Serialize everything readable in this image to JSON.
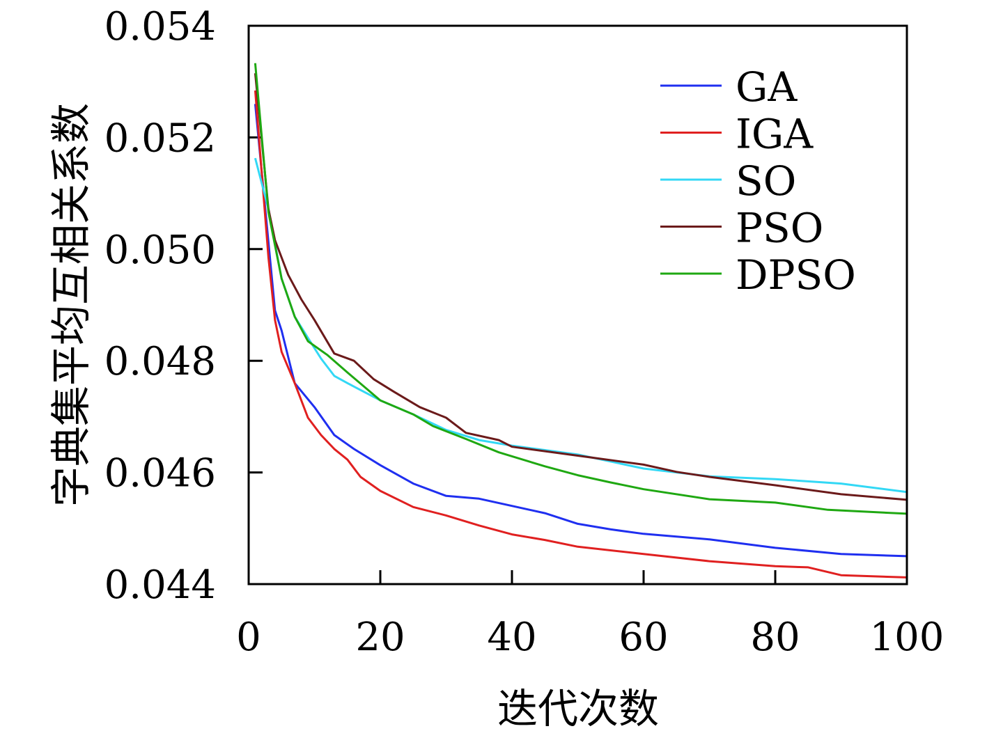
{
  "chart_data": {
    "type": "line",
    "title": "",
    "xlabel": "迭代次数",
    "ylabel": "字典集平均互相关系数",
    "xlim": [
      0,
      100
    ],
    "ylim": [
      0.044,
      0.054
    ],
    "xticks": [
      "0",
      "20",
      "40",
      "60",
      "80",
      "100"
    ],
    "xtick_values": [
      0,
      20,
      40,
      60,
      80,
      100
    ],
    "yticks": [
      "0.044",
      "0.046",
      "0.048",
      "0.050",
      "0.052",
      "0.054"
    ],
    "ytick_values": [
      0.044,
      0.046,
      0.048,
      0.05,
      0.052,
      0.054
    ],
    "grid": false,
    "legend_position": "top-right",
    "series": [
      {
        "name": "GA",
        "color": "#1f2ff0",
        "x": [
          1,
          4,
          5,
          7,
          10,
          13,
          16,
          20,
          25,
          30,
          35,
          40,
          45,
          50,
          55,
          60,
          70,
          80,
          90,
          100
        ],
        "y": [
          0.0526,
          0.0489,
          0.04854,
          0.0476,
          0.04717,
          0.04667,
          0.04642,
          0.04613,
          0.0458,
          0.04558,
          0.04553,
          0.0454,
          0.04527,
          0.04508,
          0.04498,
          0.0449,
          0.0448,
          0.04465,
          0.04454,
          0.0445
        ]
      },
      {
        "name": "IGA",
        "color": "#e02020",
        "x": [
          1,
          3,
          4,
          5,
          7,
          9,
          11,
          13,
          15,
          17,
          20,
          25,
          30,
          35,
          40,
          45,
          50,
          60,
          70,
          80,
          85,
          90,
          100
        ],
        "y": [
          0.05284,
          0.04985,
          0.04873,
          0.04816,
          0.0476,
          0.04698,
          0.04667,
          0.04642,
          0.04623,
          0.04592,
          0.04567,
          0.04538,
          0.04523,
          0.04505,
          0.04489,
          0.04479,
          0.04467,
          0.04454,
          0.04441,
          0.04432,
          0.0443,
          0.04416,
          0.04412
        ]
      },
      {
        "name": "SO",
        "color": "#33d8f5",
        "x": [
          1,
          3,
          5,
          7,
          9,
          11,
          13,
          15,
          20,
          25,
          30,
          35,
          40,
          50,
          60,
          70,
          80,
          90,
          100
        ],
        "y": [
          0.05163,
          0.05072,
          0.04947,
          0.04879,
          0.04841,
          0.04804,
          0.04773,
          0.0476,
          0.04729,
          0.04704,
          0.04676,
          0.04658,
          0.04648,
          0.04632,
          0.04607,
          0.04593,
          0.04588,
          0.0458,
          0.04565
        ]
      },
      {
        "name": "PSO",
        "color": "#6b1a1a",
        "x": [
          1,
          3,
          4,
          6,
          8,
          10,
          13,
          16,
          19,
          22,
          26,
          30,
          33,
          38,
          40,
          50,
          60,
          65,
          70,
          80,
          90,
          100
        ],
        "y": [
          0.05315,
          0.05072,
          0.05016,
          0.04954,
          0.0491,
          0.04873,
          0.04813,
          0.048,
          0.04767,
          0.04745,
          0.04717,
          0.04698,
          0.04671,
          0.04658,
          0.04646,
          0.0463,
          0.04614,
          0.04601,
          0.04592,
          0.04577,
          0.04561,
          0.04551
        ]
      },
      {
        "name": "DPSO",
        "color": "#1fa812",
        "x": [
          1,
          3,
          5,
          7,
          9,
          12,
          15,
          20,
          25,
          28,
          33,
          38,
          45,
          50,
          55,
          60,
          70,
          80,
          88,
          100
        ],
        "y": [
          0.05333,
          0.05066,
          0.04947,
          0.04879,
          0.04835,
          0.0481,
          0.04779,
          0.04729,
          0.04704,
          0.04683,
          0.0466,
          0.04636,
          0.04611,
          0.04595,
          0.04582,
          0.0457,
          0.04552,
          0.04546,
          0.04533,
          0.04526
        ]
      }
    ]
  }
}
